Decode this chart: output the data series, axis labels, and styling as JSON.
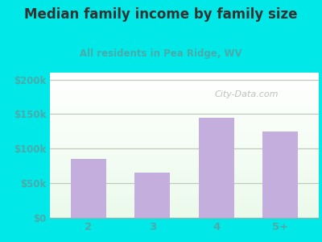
{
  "title": "Median family income by family size",
  "subtitle": "All residents in Pea Ridge, WV",
  "categories": [
    "2",
    "3",
    "4",
    "5+"
  ],
  "values": [
    85000,
    65000,
    145000,
    125000
  ],
  "bar_color": "#c4aedd",
  "title_color": "#333333",
  "subtitle_color": "#4aabab",
  "outer_bg": "#00e8e8",
  "ylabel_ticks": [
    0,
    50000,
    100000,
    150000,
    200000
  ],
  "ylabel_labels": [
    "$0",
    "$50k",
    "$100k",
    "$150k",
    "$200k"
  ],
  "ylim": [
    0,
    210000
  ],
  "tick_color": "#4aabab",
  "watermark": "City-Data.com",
  "grid_color": "#bbccbb"
}
